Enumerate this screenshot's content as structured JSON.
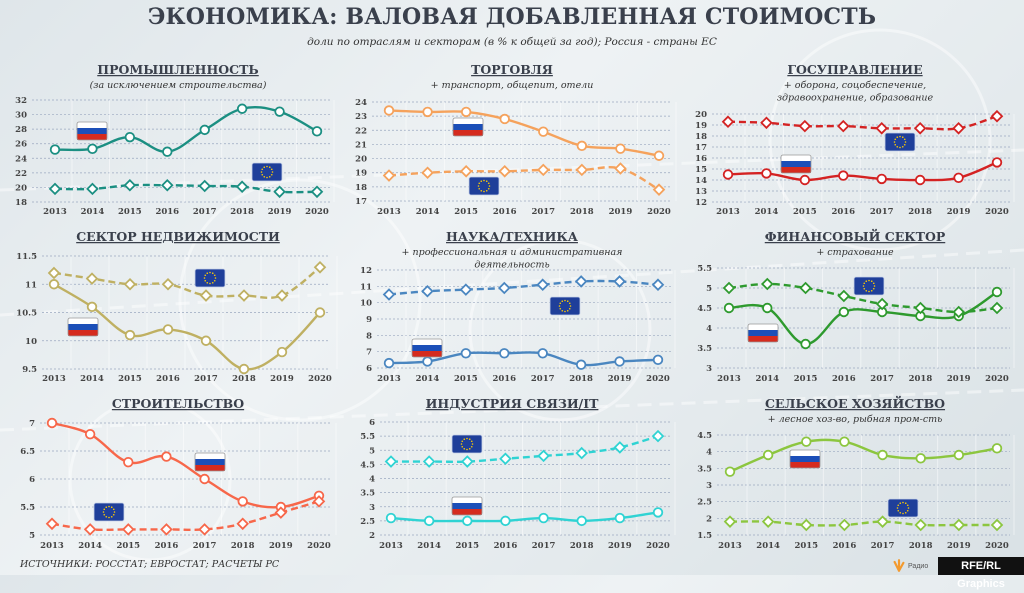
{
  "header": {
    "title": "ЭКОНОМИКА: ВАЛОВАЯ ДОБАВЛЕННАЯ СТОИМОСТЬ",
    "subtitle": "доли по отраслям и секторам (в % к общей за год); Россия - страны ЕС"
  },
  "footer": {
    "sources": "ИСТОЧНИКИ: РОССТАТ; ЕВРОСТАТ; РАСЧЕТЫ РС",
    "logo_small": "Радио",
    "logo": "RFE/RL Graphics"
  },
  "icons": {
    "russia": "russia-flag",
    "eu": "eu-flag"
  },
  "chart_data": [
    {
      "type": "line",
      "title": "ПРОМЫШЛЕННОСТЬ",
      "subtitle_lines": [
        "(за исключением строительства)"
      ],
      "color": "#1b8f82",
      "categories": [
        "2013",
        "2014",
        "2015",
        "2016",
        "2017",
        "2018",
        "2019",
        "2020"
      ],
      "yticks": [
        "18",
        "20",
        "22",
        "24",
        "26",
        "28",
        "30",
        "32"
      ],
      "ylim": [
        18,
        32
      ],
      "grid": true,
      "series": [
        {
          "flag": "russia-flag",
          "style": "solid",
          "marker": "circle",
          "values": [
            25.2,
            25.3,
            26.9,
            24.9,
            27.9,
            30.8,
            30.4,
            27.7
          ]
        },
        {
          "flag": "eu-flag",
          "style": "dashed",
          "marker": "diamond",
          "values": [
            19.8,
            19.8,
            20.3,
            20.3,
            20.2,
            20.1,
            19.4,
            19.4
          ]
        }
      ]
    },
    {
      "type": "line",
      "title": "ТОРГОВЛЯ",
      "subtitle_lines": [
        "+ транспорт, общепит, отели"
      ],
      "color": "#f5a25c",
      "categories": [
        "2013",
        "2014",
        "2015",
        "2016",
        "2017",
        "2018",
        "2019",
        "2020"
      ],
      "yticks": [
        "17",
        "18",
        "19",
        "20",
        "21",
        "22",
        "23",
        "24"
      ],
      "ylim": [
        17,
        24
      ],
      "grid": true,
      "series": [
        {
          "flag": "russia-flag",
          "style": "solid",
          "marker": "circle",
          "values": [
            23.4,
            23.3,
            23.3,
            22.8,
            21.9,
            20.9,
            20.7,
            20.2
          ]
        },
        {
          "flag": "eu-flag",
          "style": "dashed",
          "marker": "diamond",
          "values": [
            18.8,
            19.0,
            19.1,
            19.1,
            19.2,
            19.2,
            19.3,
            17.8
          ]
        }
      ]
    },
    {
      "type": "line",
      "title": "ГОСУПРАВЛЕНИЕ",
      "subtitle_lines": [
        "+ оборона, соцобеспечение,",
        "здравоохранение, образование"
      ],
      "color": "#d42222",
      "categories": [
        "2013",
        "2014",
        "2015",
        "2016",
        "2017",
        "2018",
        "2019",
        "2020"
      ],
      "yticks": [
        "12",
        "13",
        "14",
        "15",
        "16",
        "17",
        "18",
        "19",
        "20"
      ],
      "ylim": [
        12,
        20
      ],
      "grid": true,
      "series": [
        {
          "flag": "russia-flag",
          "style": "solid",
          "marker": "circle",
          "values": [
            14.5,
            14.6,
            14.0,
            14.4,
            14.1,
            14.0,
            14.2,
            15.6
          ]
        },
        {
          "flag": "eu-flag",
          "style": "dashed",
          "marker": "diamond",
          "values": [
            19.3,
            19.2,
            18.9,
            18.9,
            18.7,
            18.7,
            18.7,
            19.8
          ]
        }
      ]
    },
    {
      "type": "line",
      "title": "СЕКТОР НЕДВИЖИМОСТИ",
      "subtitle_lines": [],
      "color": "#bfb062",
      "categories": [
        "2013",
        "2014",
        "2015",
        "2016",
        "2017",
        "2018",
        "2019",
        "2020"
      ],
      "yticks": [
        "9.5",
        "10",
        "10.5",
        "11",
        "11.5"
      ],
      "ylim": [
        9.5,
        11.5
      ],
      "grid": true,
      "series": [
        {
          "flag": "russia-flag",
          "style": "solid",
          "marker": "circle",
          "values": [
            11.0,
            10.6,
            10.1,
            10.2,
            10.0,
            9.5,
            9.8,
            10.5
          ]
        },
        {
          "flag": "eu-flag",
          "style": "dashed",
          "marker": "diamond",
          "values": [
            11.2,
            11.1,
            11.0,
            11.0,
            10.8,
            10.8,
            10.8,
            11.3
          ]
        }
      ]
    },
    {
      "type": "line",
      "title": "НАУКА/ТЕХНИКА",
      "subtitle_lines": [
        "+ профессиональная и административная",
        "деятельность"
      ],
      "color": "#4a86c0",
      "categories": [
        "2013",
        "2014",
        "2015",
        "2016",
        "2017",
        "2018",
        "2019",
        "2020"
      ],
      "yticks": [
        "6",
        "7",
        "8",
        "9",
        "10",
        "11",
        "12"
      ],
      "ylim": [
        6,
        12
      ],
      "grid": true,
      "series": [
        {
          "flag": "russia-flag",
          "style": "solid",
          "marker": "circle",
          "values": [
            6.3,
            6.4,
            6.9,
            6.9,
            6.9,
            6.2,
            6.4,
            6.5
          ]
        },
        {
          "flag": "eu-flag",
          "style": "dashed",
          "marker": "diamond",
          "values": [
            10.5,
            10.7,
            10.8,
            10.9,
            11.1,
            11.3,
            11.3,
            11.1
          ]
        }
      ]
    },
    {
      "type": "line",
      "title": "ФИНАНСОВЫЙ СЕКТОР",
      "subtitle_lines": [
        "+ страхование"
      ],
      "color": "#2e9a2e",
      "categories": [
        "2013",
        "2014",
        "2015",
        "2016",
        "2017",
        "2018",
        "2019",
        "2020"
      ],
      "yticks": [
        "3",
        "3.5",
        "4",
        "4.5",
        "5",
        "5.5"
      ],
      "ylim": [
        3,
        5.5
      ],
      "grid": true,
      "series": [
        {
          "flag": "russia-flag",
          "style": "solid",
          "marker": "circle",
          "values": [
            4.5,
            4.5,
            3.6,
            4.4,
            4.4,
            4.3,
            4.3,
            4.9
          ]
        },
        {
          "flag": "eu-flag",
          "style": "dashed",
          "marker": "diamond",
          "values": [
            5.0,
            5.1,
            5.0,
            4.8,
            4.6,
            4.5,
            4.4,
            4.5
          ]
        }
      ]
    },
    {
      "type": "line",
      "title": "СТРОИТЕЛЬСТВО",
      "subtitle_lines": [],
      "color": "#f7674a",
      "categories": [
        "2013",
        "2014",
        "2015",
        "2016",
        "2017",
        "2018",
        "2019",
        "2020"
      ],
      "yticks": [
        "5",
        "5.5",
        "6",
        "6.5",
        "7"
      ],
      "ylim": [
        5,
        7
      ],
      "grid": true,
      "series": [
        {
          "flag": "russia-flag",
          "style": "solid",
          "marker": "circle",
          "values": [
            7.0,
            6.8,
            6.3,
            6.4,
            6.0,
            5.6,
            5.5,
            5.7
          ]
        },
        {
          "flag": "eu-flag",
          "style": "dashed",
          "marker": "diamond",
          "values": [
            5.2,
            5.1,
            5.1,
            5.1,
            5.1,
            5.2,
            5.4,
            5.6
          ]
        }
      ]
    },
    {
      "type": "line",
      "title": "ИНДУСТРИЯ СВЯЗИ/IT",
      "subtitle_lines": [],
      "color": "#2fd3d3",
      "categories": [
        "2013",
        "2014",
        "2015",
        "2016",
        "2017",
        "2018",
        "2019",
        "2020"
      ],
      "yticks": [
        "2",
        "2.5",
        "3",
        "3.5",
        "4",
        "4.5",
        "5",
        "5.5",
        "6"
      ],
      "ylim": [
        2,
        6
      ],
      "grid": true,
      "series": [
        {
          "flag": "russia-flag",
          "style": "solid",
          "marker": "circle",
          "values": [
            2.6,
            2.5,
            2.5,
            2.5,
            2.6,
            2.5,
            2.6,
            2.8
          ]
        },
        {
          "flag": "eu-flag",
          "style": "dashed",
          "marker": "diamond",
          "values": [
            4.6,
            4.6,
            4.6,
            4.7,
            4.8,
            4.9,
            5.1,
            5.5
          ]
        }
      ]
    },
    {
      "type": "line",
      "title": "СЕЛЬСКОЕ ХОЗЯЙСТВО",
      "subtitle_lines": [
        "+ лесное хоз-во, рыбная пром-сть"
      ],
      "color": "#8cc63f",
      "categories": [
        "2013",
        "2014",
        "2015",
        "2016",
        "2017",
        "2018",
        "2019",
        "2020"
      ],
      "yticks": [
        "1.5",
        "2",
        "2.5",
        "3",
        "3.5",
        "4",
        "4.5"
      ],
      "ylim": [
        1.5,
        4.5
      ],
      "grid": true,
      "series": [
        {
          "flag": "russia-flag",
          "style": "solid",
          "marker": "circle",
          "values": [
            3.4,
            3.9,
            4.3,
            4.3,
            3.9,
            3.8,
            3.9,
            4.1
          ]
        },
        {
          "flag": "eu-flag",
          "style": "dashed",
          "marker": "diamond",
          "values": [
            1.9,
            1.9,
            1.8,
            1.8,
            1.9,
            1.8,
            1.8,
            1.8
          ]
        }
      ]
    }
  ]
}
